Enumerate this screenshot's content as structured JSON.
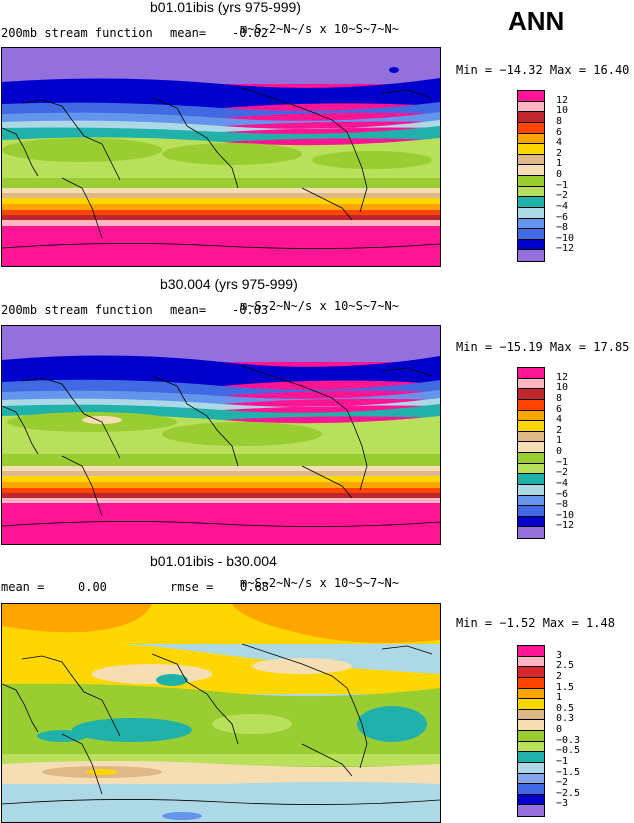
{
  "season": "ANN",
  "panels": [
    {
      "title": "b01.01ibis (yrs 975-999)",
      "left_label": "200mb stream function",
      "mean_label": "mean=",
      "mean_value": "-0.02",
      "units": "m~S~2~N~/s x 10~S~7~N~",
      "min_max": "Min = −14.32 Max =  16.40",
      "legend": [
        "12",
        "10",
        "8",
        "6",
        "4",
        "2",
        "1",
        "0",
        "−1",
        "−2",
        "−4",
        "−6",
        "−8",
        "−10",
        "−12"
      ]
    },
    {
      "title": "b30.004 (yrs 975-999)",
      "left_label": "200mb stream function",
      "mean_label": "mean=",
      "mean_value": "-0.03",
      "units": "m~S~2~N~/s x 10~S~7~N~",
      "min_max": "Min = −15.19 Max =  17.85",
      "legend": [
        "12",
        "10",
        "8",
        "6",
        "4",
        "2",
        "1",
        "0",
        "−1",
        "−2",
        "−4",
        "−6",
        "−8",
        "−10",
        "−12"
      ]
    },
    {
      "title": "b01.01ibis - b30.004",
      "left_label": "mean =",
      "mean_value": "0.00",
      "rmse_label": "rmse =",
      "rmse_value": "0.68",
      "units": "m~S~2~N~/s x 10~S~7~N~",
      "min_max": "Min =  −1.52 Max =   1.48",
      "legend": [
        "3",
        "2.5",
        "2",
        "1.5",
        "1",
        "0.5",
        "0.3",
        "0",
        "−0.3",
        "−0.5",
        "−1",
        "−1.5",
        "−2",
        "−2.5",
        "−3"
      ]
    }
  ],
  "colors": {
    "abs_scale": [
      "#ff1493",
      "#ffb6c1",
      "#c0262d",
      "#ff4500",
      "#ffa500",
      "#ffd700",
      "#deb887",
      "#f5deb3",
      "#9acd32",
      "#b8e05a",
      "#20b2aa",
      "#add8e6",
      "#6495ed",
      "#4169e1",
      "#0000cd",
      "#9370db"
    ],
    "diff_scale": [
      "#ff1493",
      "#ffb6c1",
      "#d62828",
      "#ff4500",
      "#ffa500",
      "#ffd700",
      "#deb887",
      "#f5deb3",
      "#9acd32",
      "#b8e05a",
      "#20b2aa",
      "#add8e6",
      "#87a5ed",
      "#4169e1",
      "#0000cd",
      "#9370db"
    ]
  }
}
